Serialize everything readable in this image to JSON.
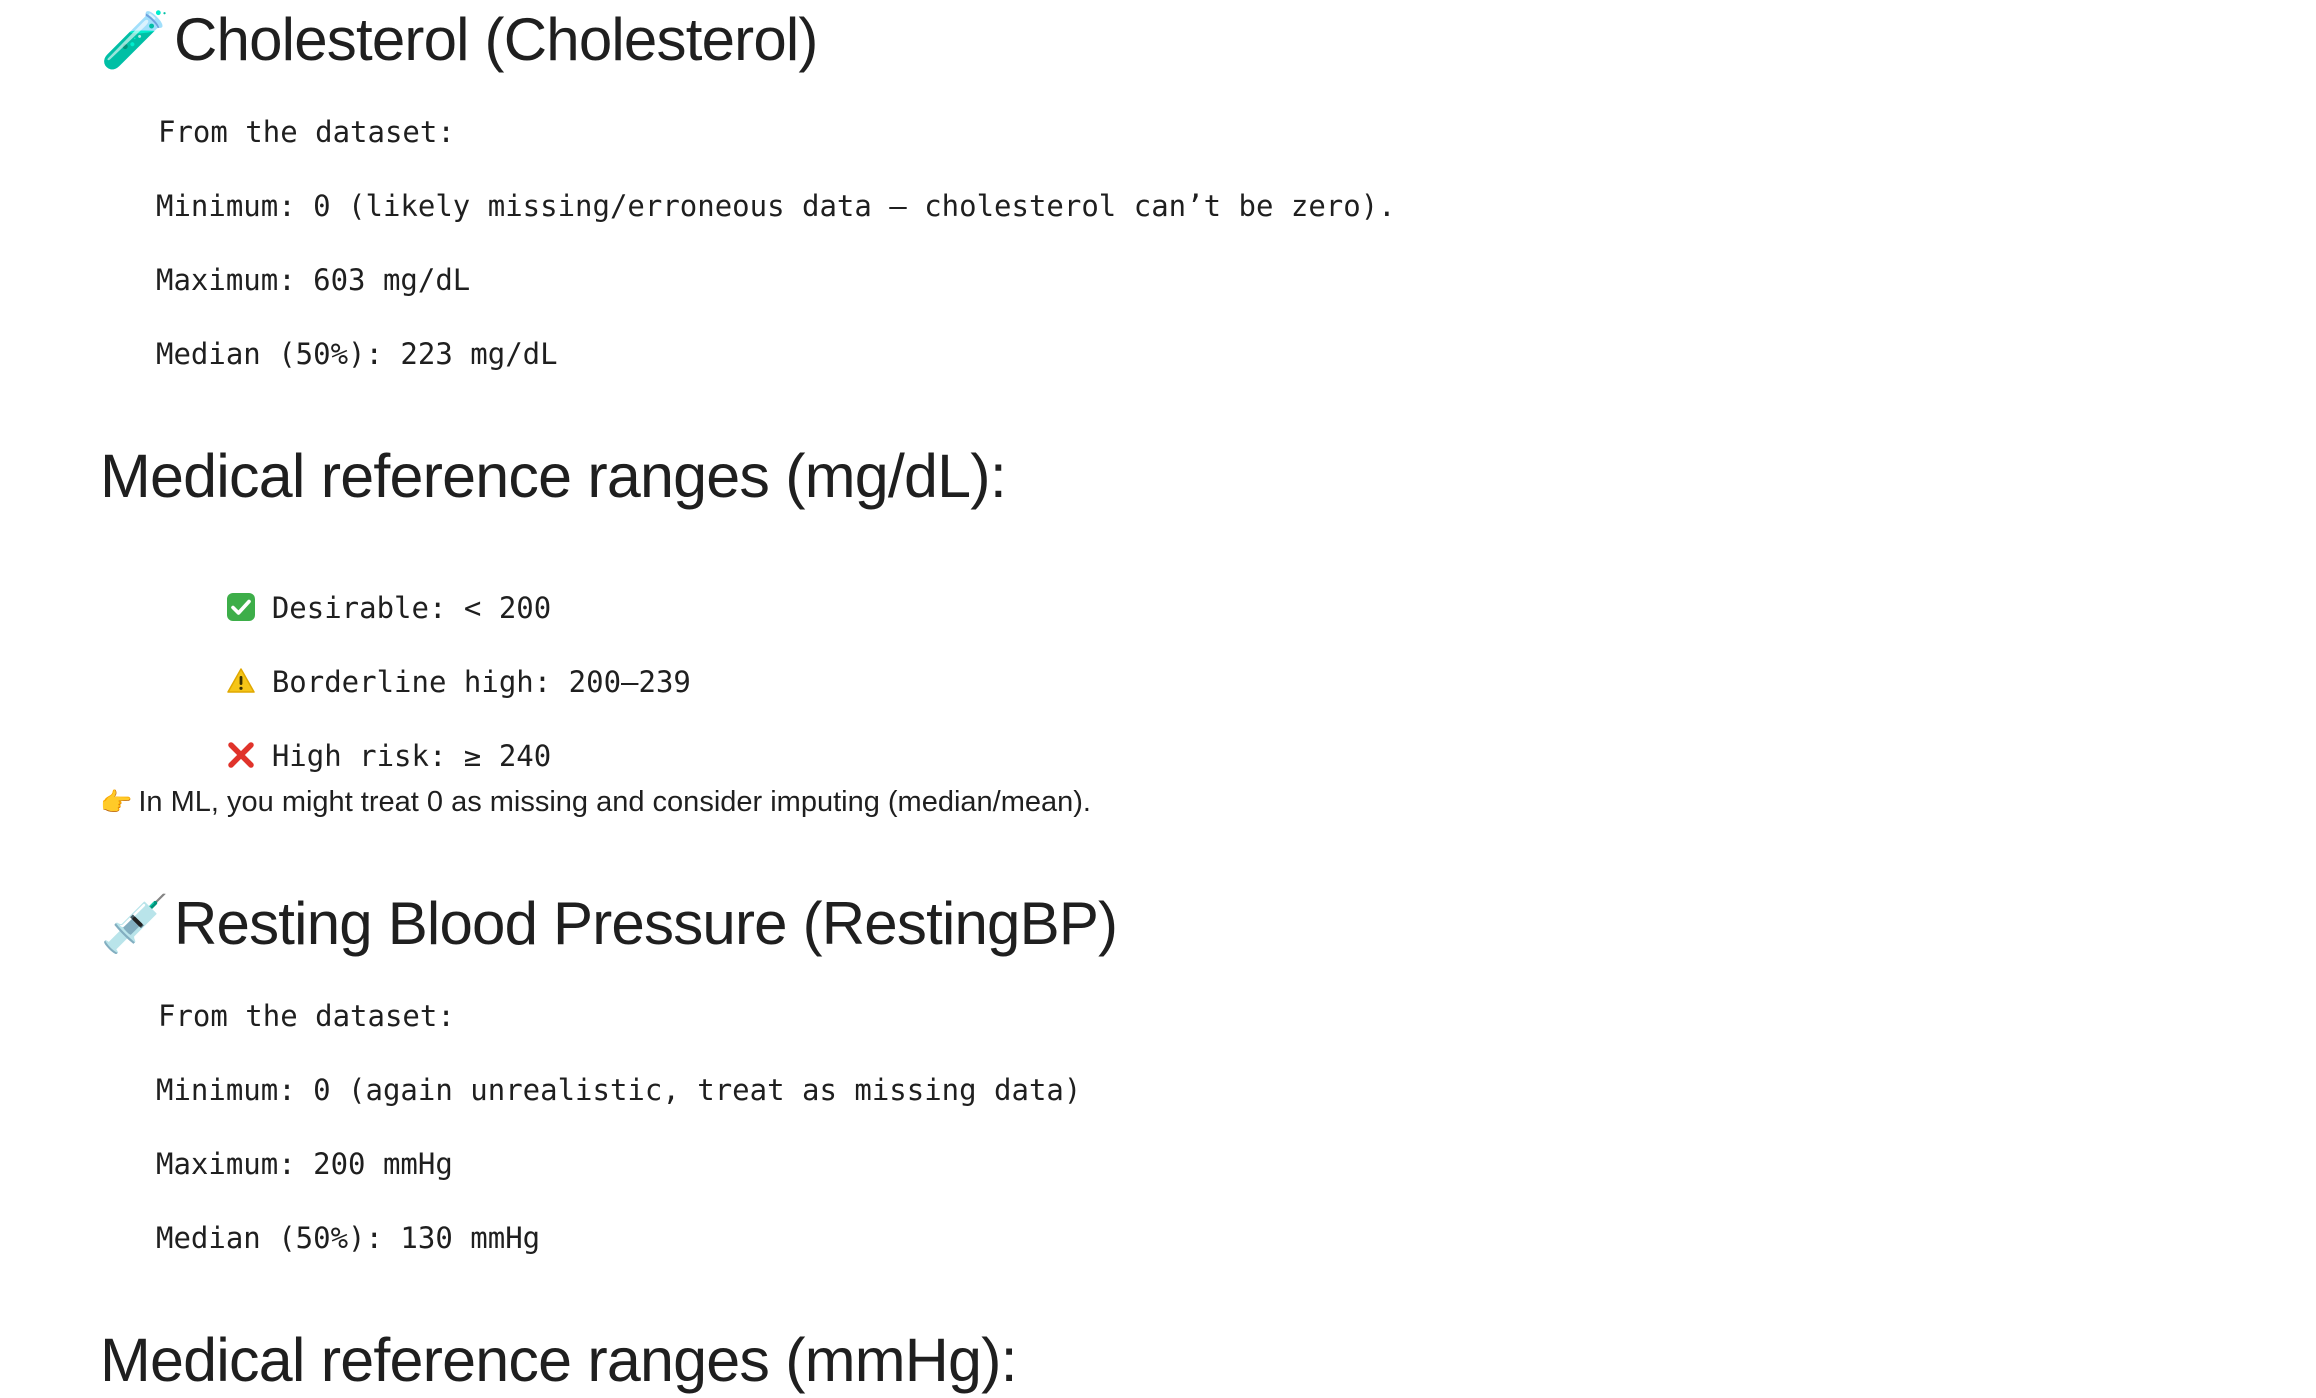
{
  "section1": {
    "emoji": "🧪",
    "emoji_name": "test-tube-icon",
    "title": "Cholesterol (Cholesterol)",
    "lines": [
      "From the dataset:",
      "Minimum: 0 (likely missing/erroneous data — cholesterol can’t be zero).",
      "Maximum: 603 mg/dL",
      "Median (50%): 223 mg/dL"
    ]
  },
  "section2": {
    "title": "Medical reference ranges (mg/dL):",
    "ranges": [
      {
        "icon": "check-mark-icon",
        "color": "#3dae49",
        "text": "Desirable: < 200"
      },
      {
        "icon": "warning-icon",
        "color": "#f5c518",
        "text": "Borderline high: 200–239"
      },
      {
        "icon": "cross-mark-icon",
        "color": "#e0332b",
        "text": "High risk: ≥ 240"
      }
    ],
    "note_emoji": "👉",
    "note": "In ML, you might treat 0 as missing and consider imputing (median/mean)."
  },
  "section3": {
    "emoji": "💉",
    "emoji_name": "syringe-icon",
    "title": "Resting Blood Pressure (RestingBP)",
    "lines": [
      "From the dataset:",
      "Minimum: 0 (again unrealistic, treat as missing data)",
      "Maximum: 200 mmHg",
      "Median (50%): 130 mmHg"
    ]
  },
  "section4": {
    "title": "Medical reference ranges (mmHg):"
  }
}
